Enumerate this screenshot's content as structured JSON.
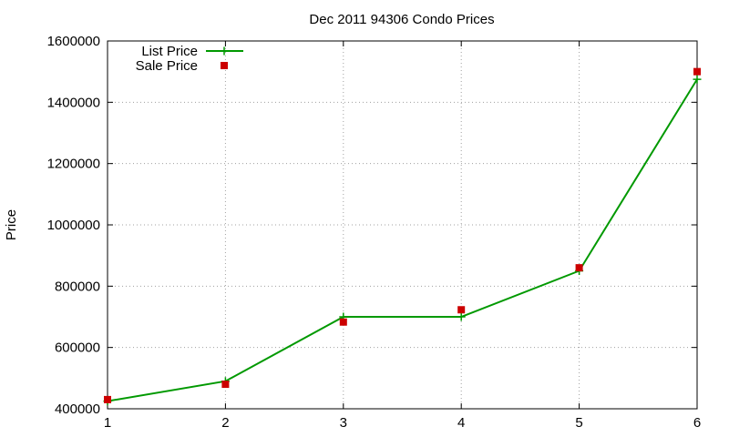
{
  "chart_data": {
    "type": "line",
    "title": "Dec 2011 94306 Condo Prices",
    "xlabel": "",
    "ylabel": "Price",
    "x": [
      1,
      2,
      3,
      4,
      5,
      6
    ],
    "xlim": [
      1,
      6
    ],
    "ylim": [
      400000,
      1600000
    ],
    "xticks": [
      "1",
      "2",
      "3",
      "4",
      "5",
      "6"
    ],
    "yticks": [
      "400000",
      "600000",
      "800000",
      "1000000",
      "1200000",
      "1400000",
      "1600000"
    ],
    "grid": true,
    "legend_position": "top-left",
    "series": [
      {
        "name": "List Price",
        "style": "line+plus-markers",
        "color": "#009900",
        "values": [
          425000,
          490000,
          700000,
          700000,
          850000,
          1475000
        ]
      },
      {
        "name": "Sale Price",
        "style": "square-markers",
        "color": "#cc0000",
        "values": [
          430000,
          480000,
          683000,
          723000,
          860000,
          1500000
        ]
      }
    ]
  }
}
